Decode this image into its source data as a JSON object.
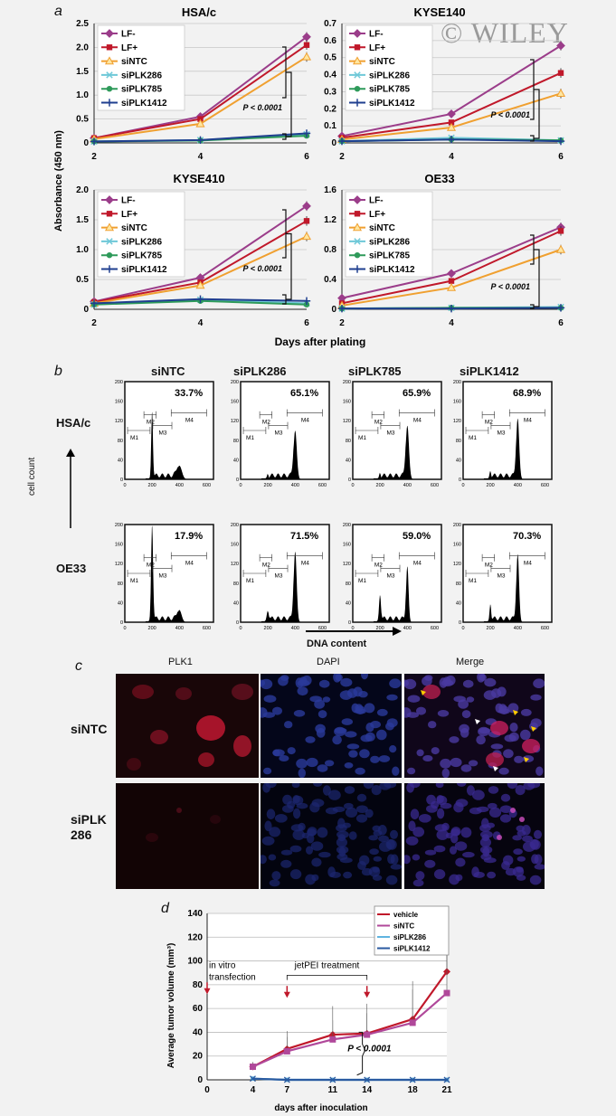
{
  "panel_labels": {
    "a": "a",
    "b": "b",
    "c": "c",
    "d": "d"
  },
  "watermark": "© WILEY",
  "colors": {
    "LF-": "#9b3d8a",
    "LF+": "#c0182a",
    "siNTC": "#f0a030",
    "siPLK286": "#6ec8d8",
    "siPLK785": "#2e9a5a",
    "siPLK1412": "#1f3f8f",
    "vehicle": "#c0182a",
    "d_siNTC": "#b0489a",
    "d_siPLK286": "#5fb4e0",
    "d_siPLK1412": "#2a5aa0"
  },
  "panel_a": {
    "ylabel": "Absorbance (450 nm)",
    "xlabel": "Days after plating",
    "pvalue": "P < 0.0001",
    "legend": [
      "LF-",
      "LF+",
      "siNTC",
      "siPLK286",
      "siPLK785",
      "siPLK1412"
    ]
  },
  "chart_data": [
    {
      "type": "line",
      "title": "HSA/c",
      "x": [
        2,
        4,
        6
      ],
      "ylim": [
        0,
        2.5
      ],
      "yticks": [
        "0",
        "0.5",
        "1.0",
        "1.5",
        "2.0",
        "2.5"
      ],
      "xticks": [
        "2",
        "4",
        "6"
      ],
      "series": [
        {
          "name": "LF-",
          "values": [
            0.1,
            0.55,
            2.22
          ]
        },
        {
          "name": "LF+",
          "values": [
            0.1,
            0.5,
            2.05
          ]
        },
        {
          "name": "siNTC",
          "values": [
            0.08,
            0.4,
            1.8
          ]
        },
        {
          "name": "siPLK286",
          "values": [
            0.03,
            0.06,
            0.18
          ]
        },
        {
          "name": "siPLK785",
          "values": [
            0.03,
            0.05,
            0.15
          ]
        },
        {
          "name": "siPLK1412",
          "values": [
            0.03,
            0.06,
            0.2
          ]
        }
      ]
    },
    {
      "type": "line",
      "title": "KYSE140",
      "x": [
        2,
        4,
        6
      ],
      "ylim": [
        0,
        0.7
      ],
      "yticks": [
        "0",
        "0.1",
        "0.2",
        "0.3",
        "0.4",
        "0.5",
        "0.6",
        "0.7"
      ],
      "xticks": [
        "2",
        "4",
        "6"
      ],
      "series": [
        {
          "name": "LF-",
          "values": [
            0.04,
            0.17,
            0.57
          ]
        },
        {
          "name": "LF+",
          "values": [
            0.03,
            0.12,
            0.41
          ]
        },
        {
          "name": "siNTC",
          "values": [
            0.02,
            0.09,
            0.29
          ]
        },
        {
          "name": "siPLK286",
          "values": [
            0.01,
            0.03,
            0.015
          ]
        },
        {
          "name": "siPLK785",
          "values": [
            0.01,
            0.02,
            0.015
          ]
        },
        {
          "name": "siPLK1412",
          "values": [
            0.01,
            0.02,
            0.01
          ]
        }
      ]
    },
    {
      "type": "line",
      "title": "KYSE410",
      "x": [
        2,
        4,
        6
      ],
      "ylim": [
        0,
        2.0
      ],
      "yticks": [
        "0",
        "0.5",
        "1.0",
        "1.5",
        "2.0"
      ],
      "xticks": [
        "2",
        "4",
        "6"
      ],
      "series": [
        {
          "name": "LF-",
          "values": [
            0.13,
            0.53,
            1.73
          ]
        },
        {
          "name": "LF+",
          "values": [
            0.12,
            0.45,
            1.48
          ]
        },
        {
          "name": "siNTC",
          "values": [
            0.1,
            0.4,
            1.22
          ]
        },
        {
          "name": "siPLK286",
          "values": [
            0.08,
            0.16,
            0.1
          ]
        },
        {
          "name": "siPLK785",
          "values": [
            0.08,
            0.14,
            0.08
          ]
        },
        {
          "name": "siPLK1412",
          "values": [
            0.1,
            0.17,
            0.14
          ]
        }
      ]
    },
    {
      "type": "line",
      "title": "OE33",
      "x": [
        2,
        4,
        6
      ],
      "ylim": [
        0,
        1.6
      ],
      "yticks": [
        "0",
        "0.4",
        "0.8",
        "1.2",
        "1.6"
      ],
      "xticks": [
        "2",
        "4",
        "6"
      ],
      "series": [
        {
          "name": "LF-",
          "values": [
            0.15,
            0.48,
            1.1
          ]
        },
        {
          "name": "LF+",
          "values": [
            0.08,
            0.38,
            1.05
          ]
        },
        {
          "name": "siNTC",
          "values": [
            0.05,
            0.29,
            0.8
          ]
        },
        {
          "name": "siPLK286",
          "values": [
            0.01,
            0.02,
            0.03
          ]
        },
        {
          "name": "siPLK785",
          "values": [
            0.01,
            0.02,
            0.02
          ]
        },
        {
          "name": "siPLK1412",
          "values": [
            0.01,
            0.01,
            0.02
          ]
        }
      ]
    },
    {
      "type": "line",
      "title": "",
      "xlabel": "days after inoculation",
      "ylabel": "Average tumor volume (mm³)",
      "x": [
        4,
        7,
        11,
        14,
        18,
        21
      ],
      "xticks": [
        "0",
        "4",
        "7",
        "11",
        "14",
        "18",
        "21"
      ],
      "ylim": [
        0,
        140
      ],
      "yticks": [
        "0",
        "20",
        "40",
        "60",
        "80",
        "100",
        "120",
        "140"
      ],
      "series": [
        {
          "name": "vehicle",
          "values": [
            11,
            26,
            38,
            39,
            51,
            91
          ]
        },
        {
          "name": "siNTC",
          "values": [
            11,
            24,
            34,
            38,
            48,
            73
          ]
        },
        {
          "name": "siPLK286",
          "values": [
            1,
            0,
            0,
            0,
            0,
            0
          ]
        },
        {
          "name": "siPLK1412",
          "values": [
            1,
            0,
            0,
            0,
            0,
            0
          ]
        }
      ]
    }
  ],
  "panel_b": {
    "columns": [
      "siNTC",
      "siPLK286",
      "siPLK785",
      "siPLK1412"
    ],
    "rows": [
      {
        "label": "HSA/c",
        "percents": [
          "33.7%",
          "65.1%",
          "65.9%",
          "68.9%"
        ]
      },
      {
        "label": "OE33",
        "percents": [
          "17.9%",
          "71.5%",
          "59.0%",
          "70.3%"
        ]
      }
    ],
    "y_axis": "cell count",
    "x_axis": "DNA content",
    "gate_labels": [
      "M1",
      "M2",
      "M3",
      "M4"
    ],
    "xticks": [
      "0",
      "200",
      "400",
      "600"
    ],
    "yticks": [
      "0",
      "40",
      "80",
      "120",
      "160",
      "200"
    ]
  },
  "panel_c": {
    "columns": [
      "PLK1",
      "DAPI",
      "Merge"
    ],
    "rows": [
      "siNTC",
      "siPLK 286"
    ]
  },
  "panel_d": {
    "annotation1": "in vitro transfection",
    "annotation2": "jetPEI treatment",
    "pvalue": "P < 0.0001",
    "legend": [
      "vehicle",
      "siNTC",
      "siPLK286",
      "siPLK1412"
    ]
  }
}
